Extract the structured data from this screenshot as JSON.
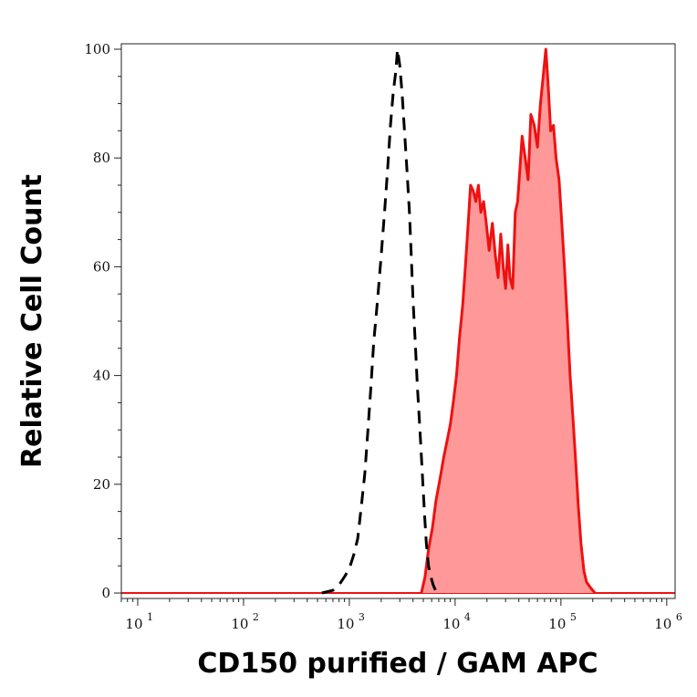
{
  "chart_data": {
    "type": "area",
    "xlabel": "CD150 purified / GAM APC",
    "ylabel": "Relative Cell Count",
    "x_scale": "log",
    "xlim": [
      7,
      1200000
    ],
    "ylim": [
      -1,
      101
    ],
    "x_ticks": [
      {
        "value": 10,
        "base": "10",
        "exp": "1"
      },
      {
        "value": 100,
        "base": "10",
        "exp": "2"
      },
      {
        "value": 1000,
        "base": "10",
        "exp": "3"
      },
      {
        "value": 10000,
        "base": "10",
        "exp": "4"
      },
      {
        "value": 100000,
        "base": "10",
        "exp": "5"
      },
      {
        "value": 1000000,
        "base": "10",
        "exp": "6"
      }
    ],
    "y_ticks": [
      {
        "value": 0,
        "label": "0"
      },
      {
        "value": 20,
        "label": "20"
      },
      {
        "value": 40,
        "label": "40"
      },
      {
        "value": 60,
        "label": "60"
      },
      {
        "value": 80,
        "label": "80"
      },
      {
        "value": 100,
        "label": "100"
      }
    ],
    "grid": false,
    "series": [
      {
        "style": "dashed",
        "color": "#000000",
        "points": [
          [
            550,
            0
          ],
          [
            700,
            0.5
          ],
          [
            800,
            1.5
          ],
          [
            900,
            3
          ],
          [
            1000,
            4.5
          ],
          [
            1100,
            7
          ],
          [
            1200,
            10
          ],
          [
            1300,
            16
          ],
          [
            1400,
            22
          ],
          [
            1500,
            30
          ],
          [
            1600,
            38
          ],
          [
            1700,
            46
          ],
          [
            1850,
            54
          ],
          [
            2000,
            62
          ],
          [
            2150,
            70
          ],
          [
            2300,
            78
          ],
          [
            2450,
            86
          ],
          [
            2600,
            92
          ],
          [
            2750,
            96
          ],
          [
            2850,
            100
          ],
          [
            3000,
            97
          ],
          [
            3150,
            92
          ],
          [
            3300,
            86
          ],
          [
            3500,
            78
          ],
          [
            3700,
            70
          ],
          [
            3850,
            62
          ],
          [
            4000,
            54
          ],
          [
            4200,
            46
          ],
          [
            4400,
            38
          ],
          [
            4650,
            30
          ],
          [
            4900,
            22
          ],
          [
            5150,
            14
          ],
          [
            5350,
            9
          ],
          [
            5600,
            5
          ],
          [
            5900,
            3
          ],
          [
            6200,
            1.5
          ],
          [
            6700,
            0
          ]
        ]
      },
      {
        "style": "filled",
        "color": "#ee1111",
        "fill_color": "#ff9999",
        "points": [
          [
            4800,
            0
          ],
          [
            5200,
            3
          ],
          [
            5600,
            8
          ],
          [
            6100,
            12
          ],
          [
            6600,
            17
          ],
          [
            7200,
            21
          ],
          [
            7800,
            25
          ],
          [
            8400,
            28
          ],
          [
            9000,
            31
          ],
          [
            9600,
            35
          ],
          [
            10300,
            40
          ],
          [
            11000,
            47
          ],
          [
            11800,
            53
          ],
          [
            12500,
            60
          ],
          [
            13300,
            68
          ],
          [
            14000,
            75
          ],
          [
            14800,
            74
          ],
          [
            15700,
            72
          ],
          [
            16600,
            75
          ],
          [
            17500,
            70
          ],
          [
            18600,
            72
          ],
          [
            19700,
            68
          ],
          [
            21000,
            63
          ],
          [
            22500,
            68
          ],
          [
            24000,
            62
          ],
          [
            25500,
            58
          ],
          [
            27000,
            66
          ],
          [
            28500,
            60
          ],
          [
            30000,
            56
          ],
          [
            31500,
            64
          ],
          [
            33000,
            58
          ],
          [
            35000,
            56
          ],
          [
            37000,
            70
          ],
          [
            39000,
            72
          ],
          [
            41000,
            78
          ],
          [
            43000,
            84
          ],
          [
            46000,
            80
          ],
          [
            49000,
            76
          ],
          [
            52000,
            88
          ],
          [
            56000,
            86
          ],
          [
            60000,
            82
          ],
          [
            64000,
            90
          ],
          [
            68000,
            95
          ],
          [
            72000,
            100
          ],
          [
            76000,
            93
          ],
          [
            80000,
            85
          ],
          [
            85000,
            86
          ],
          [
            90000,
            80
          ],
          [
            96000,
            76
          ],
          [
            102000,
            68
          ],
          [
            108000,
            60
          ],
          [
            115000,
            50
          ],
          [
            122000,
            40
          ],
          [
            130000,
            32
          ],
          [
            138000,
            24
          ],
          [
            146000,
            16
          ],
          [
            155000,
            9
          ],
          [
            165000,
            4
          ],
          [
            175000,
            2
          ],
          [
            190000,
            1
          ],
          [
            210000,
            0
          ]
        ]
      }
    ]
  }
}
